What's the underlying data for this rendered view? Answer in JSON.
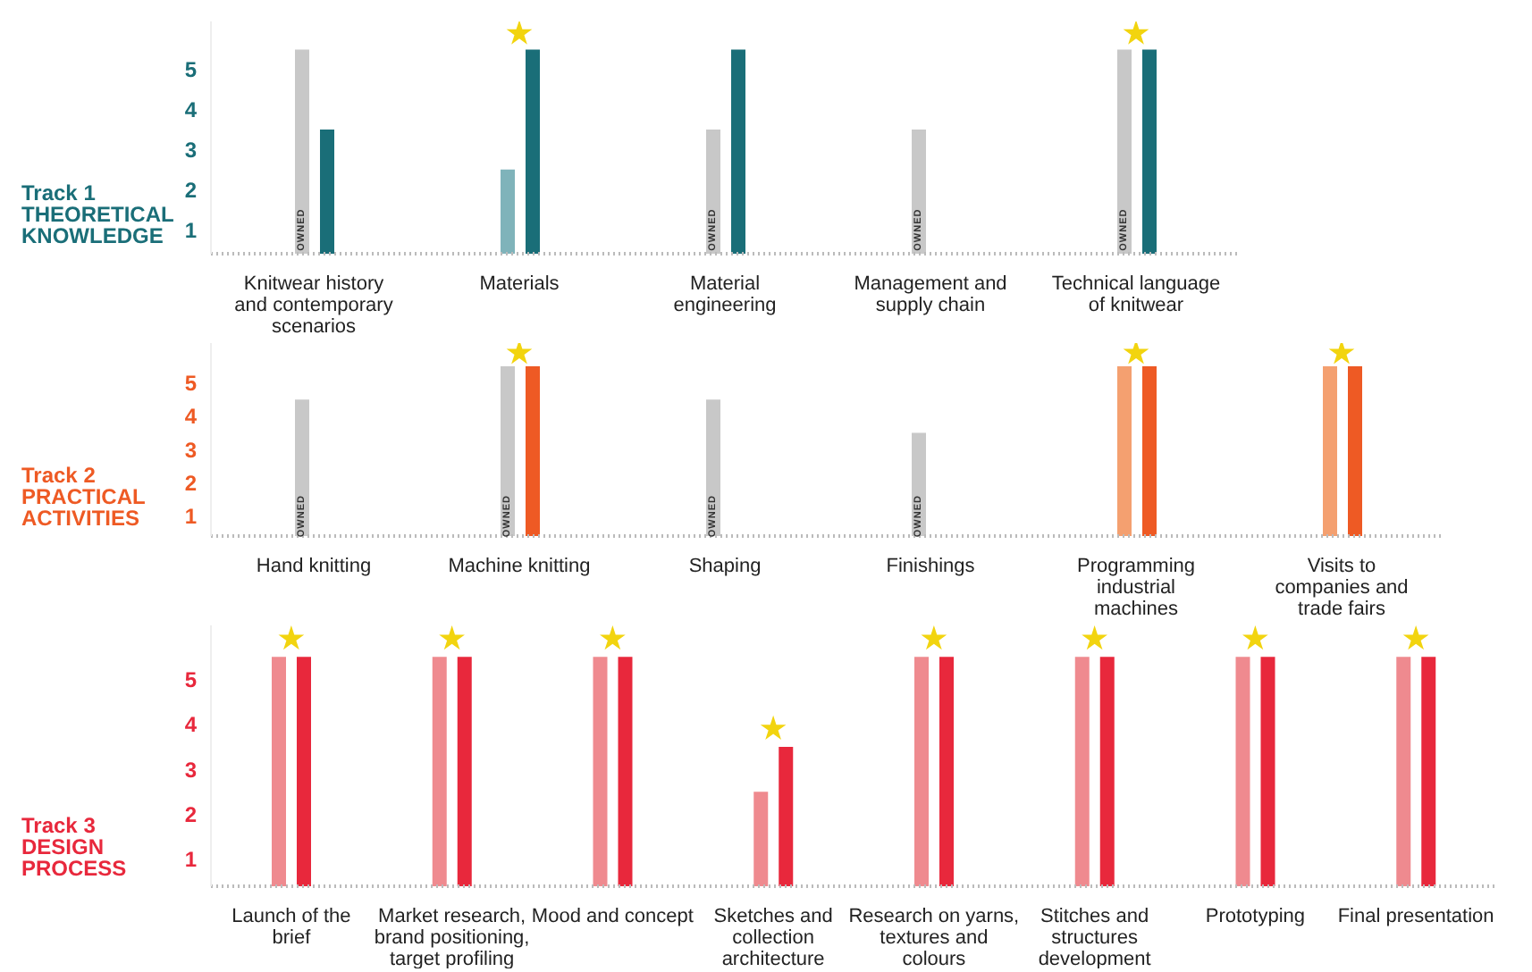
{
  "chart_data": [
    {
      "type": "bar",
      "title": "Track 1",
      "subtitle": "THEORETICAL KNOWLEDGE",
      "categories": [
        "Knitwear history and contemporary scenarios",
        "Materials",
        "Material engineering",
        "Management and supply chain",
        "Technical language of knitwear"
      ],
      "series": [
        {
          "colors": [
            "#c8c8c8",
            "#7fb3ba",
            "#c8c8c8",
            "#c8c8c8",
            "#c8c8c8"
          ],
          "values": [
            5.5,
            2.5,
            3.5,
            3.5,
            5.5
          ]
        },
        {
          "color": "#1a6e78",
          "values": [
            3.5,
            5.5,
            5.5,
            null,
            5.5
          ]
        },
        {
          "type": "scatter",
          "color": "#f2d40f",
          "marker": "star",
          "x": [
            "Materials",
            "Technical language of knitwear"
          ],
          "values": [
            5.9,
            5.9
          ]
        }
      ],
      "annotations": [
        {
          "text": "OWNED",
          "x": "Knitwear history and contemporary scenarios",
          "y": 1
        },
        {
          "text": "OWNED",
          "x": "Material engineering",
          "y": 1
        },
        {
          "text": "OWNED",
          "x": "Management and supply chain",
          "y": 1
        },
        {
          "text": "OWNED",
          "x": "Technical language of knitwear",
          "y": 1
        }
      ],
      "ylim": [
        0.4,
        6.2
      ],
      "yticks": [
        1,
        2,
        3,
        4,
        5
      ]
    },
    {
      "type": "bar",
      "title": "Track 2",
      "subtitle": "PRACTICAL ACTIVITIES",
      "categories": [
        "Hand knitting",
        "Machine knitting",
        "Shaping",
        "Finishings",
        "Programming industrial machines",
        "Visits to companies and trade fairs"
      ],
      "series": [
        {
          "colors": [
            "#c8c8c8",
            "#c8c8c8",
            "#c8c8c8",
            "#c8c8c8",
            "#f4a070",
            "#f4a070"
          ],
          "values": [
            4.5,
            5.5,
            4.5,
            3.5,
            5.5,
            5.5
          ]
        },
        {
          "color": "#ee5a24",
          "values": [
            null,
            5.5,
            null,
            null,
            5.5,
            5.5
          ]
        },
        {
          "type": "scatter",
          "color": "#f2d40f",
          "marker": "star",
          "x": [
            "Machine knitting",
            "Programming industrial machines",
            "Visits to companies and trade fairs"
          ],
          "values": [
            5.9,
            5.9,
            5.9
          ]
        }
      ],
      "annotations": [
        {
          "text": "OWNED",
          "x": "Hand knitting",
          "y": 1
        },
        {
          "text": "OWNED",
          "x": "Machine knitting",
          "y": 1
        },
        {
          "text": "OWNED",
          "x": "Shaping",
          "y": 1
        },
        {
          "text": "OWNED",
          "x": "Finishings",
          "y": 1
        }
      ],
      "ylim": [
        0.4,
        6.2
      ],
      "yticks": [
        1,
        2,
        3,
        4,
        5
      ]
    },
    {
      "type": "bar",
      "title": "Track 3",
      "subtitle": "DESIGN PROCESS",
      "categories": [
        "Launch of the brief",
        "Market research, brand positioning, target profiling",
        "Mood and concept",
        "Sketches and collection architecture",
        "Research on yarns, textures and colours",
        "Stitches and structures development",
        "Prototyping",
        "Final presentation"
      ],
      "series": [
        {
          "color": "#ef8a8f",
          "values": [
            5.5,
            5.5,
            5.5,
            2.5,
            5.5,
            5.5,
            5.5,
            5.5
          ]
        },
        {
          "color": "#e8283c",
          "values": [
            5.5,
            5.5,
            5.5,
            3.5,
            5.5,
            5.5,
            5.5,
            5.5
          ]
        },
        {
          "type": "scatter",
          "color": "#f2d40f",
          "marker": "star",
          "x": [
            "Launch of the brief",
            "Market research, brand positioning, target profiling",
            "Mood and concept",
            "Sketches and collection architecture",
            "Research on yarns, textures and colours",
            "Stitches and structures development",
            "Prototyping",
            "Final presentation"
          ],
          "values": [
            5.9,
            5.9,
            5.9,
            3.9,
            5.9,
            5.9,
            5.9,
            5.9
          ]
        }
      ],
      "ylim": [
        0.4,
        6.2
      ],
      "yticks": [
        1,
        2,
        3,
        4,
        5
      ]
    }
  ]
}
